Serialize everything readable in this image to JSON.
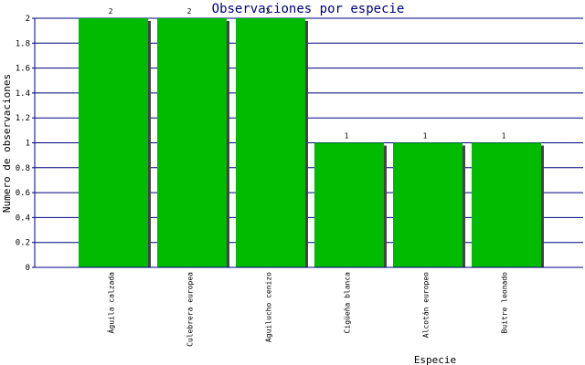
{
  "chart_data": {
    "type": "bar",
    "title": "Observaciones por especie",
    "xlabel": "Especie",
    "ylabel": "Numero de observaciones",
    "categories": [
      "Águila calzada",
      "Culebrera europea",
      "Aguilucho cenizo",
      "Cigüeña blanca",
      "Alcotán europeo",
      "Buitre leonado"
    ],
    "values": [
      2,
      2,
      2,
      1,
      1,
      1
    ],
    "data_labels": [
      "2",
      "2",
      "2",
      "1",
      "1",
      "1"
    ],
    "ylim": [
      0,
      2
    ],
    "yticks": [
      "0",
      "0.2",
      "0.4",
      "0.6",
      "0.8",
      "1",
      "1.2",
      "1.4",
      "1.6",
      "1.8",
      "2"
    ],
    "grid": true,
    "legend": "none",
    "colors": {
      "bar": "#00bb00",
      "shadow": "#444444",
      "grid": "#000080",
      "axis": "#000080",
      "title": "#000080",
      "text": "#000000"
    }
  }
}
